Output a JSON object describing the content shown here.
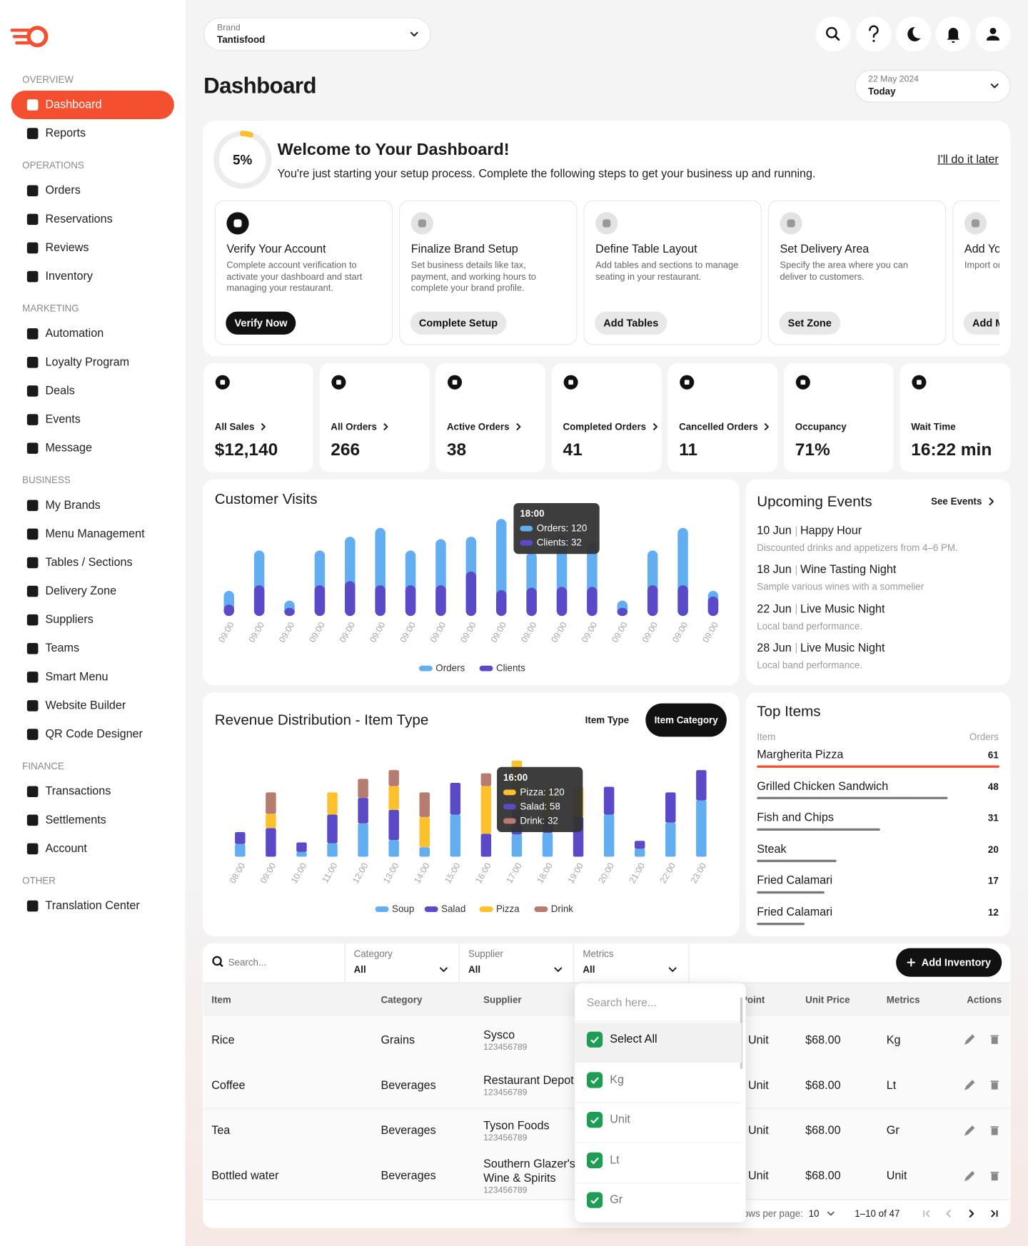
{
  "theme": {
    "accent": "#f4502f"
  },
  "sidebar": {
    "sections": [
      {
        "title": "OVERVIEW",
        "items": [
          {
            "label": "Dashboard",
            "active": true
          },
          {
            "label": "Reports"
          }
        ]
      },
      {
        "title": "OPERATIONS",
        "items": [
          {
            "label": "Orders"
          },
          {
            "label": "Reservations"
          },
          {
            "label": "Reviews"
          },
          {
            "label": "Inventory"
          }
        ]
      },
      {
        "title": "MARKETING",
        "items": [
          {
            "label": "Automation"
          },
          {
            "label": "Loyalty Program"
          },
          {
            "label": "Deals"
          },
          {
            "label": "Events"
          },
          {
            "label": "Message"
          }
        ]
      },
      {
        "title": "BUSINESS",
        "items": [
          {
            "label": "My Brands"
          },
          {
            "label": "Menu Management"
          },
          {
            "label": "Tables / Sections"
          },
          {
            "label": "Delivery Zone"
          },
          {
            "label": "Suppliers"
          },
          {
            "label": "Teams"
          },
          {
            "label": "Smart Menu"
          },
          {
            "label": "Website Builder"
          },
          {
            "label": "QR Code Designer"
          }
        ]
      },
      {
        "title": "FINANCE",
        "items": [
          {
            "label": "Transactions"
          },
          {
            "label": "Settlements"
          },
          {
            "label": "Account"
          }
        ]
      },
      {
        "title": "OTHER",
        "items": [
          {
            "label": "Translation Center"
          }
        ]
      }
    ]
  },
  "header": {
    "brand_label": "Brand",
    "brand": "Tantisfood",
    "title": "Dashboard",
    "date": "22 May 2024",
    "date_sub": "Today"
  },
  "welcome": {
    "progress": 5,
    "progress_label": "5%",
    "progress_color": "#fbc02d",
    "title": "Welcome to Your Dashboard!",
    "text": "You're just starting your setup process. Complete the following steps to get your business up and running.",
    "later": "I'll do it later",
    "steps": [
      {
        "title": "Verify Your Account",
        "text": "Complete account verification to activate your dashboard and start managing your restaurant.",
        "button": "Verify Now",
        "primary": true
      },
      {
        "title": "Finalize Brand Setup",
        "text": "Set business details like tax, payment, and working hours to complete your brand profile.",
        "button": "Complete Setup"
      },
      {
        "title": "Define Table Layout",
        "text": "Add tables and sections to manage seating in your restaurant.",
        "button": "Add Tables"
      },
      {
        "title": "Set Delivery Area",
        "text": "Specify the area where you can deliver to customers.",
        "button": "Set Zone"
      },
      {
        "title": "Add Your Menu",
        "text": "Import or add your menu items.",
        "button": "Add Menu"
      }
    ]
  },
  "stats": [
    {
      "label": "All Sales",
      "value": "$12,140",
      "link": true
    },
    {
      "label": "All Orders",
      "value": "266",
      "link": true
    },
    {
      "label": "Active Orders",
      "value": "38",
      "link": true
    },
    {
      "label": "Completed Orders",
      "value": "41",
      "link": true
    },
    {
      "label": "Cancelled Orders",
      "value": "11",
      "link": true
    },
    {
      "label": "Occupancy",
      "value": "71%"
    },
    {
      "label": "Wait Time",
      "value": "16:22 min"
    }
  ],
  "chart_data": [
    {
      "type": "bar",
      "title": "Customer Visits",
      "stacked": false,
      "categories": [
        "09:00",
        "09:00",
        "09:00",
        "09:00",
        "09:00",
        "09:00",
        "09:00",
        "09:00",
        "09:00",
        "09:00",
        "09:00",
        "09:00",
        "09:00",
        "09:00",
        "09:00",
        "09:00",
        "09:00"
      ],
      "series": [
        {
          "name": "Orders",
          "color": "#62aef0",
          "values": [
            31,
            81,
            19,
            81,
            98,
            109,
            81,
            95,
            98,
            120,
            79,
            100,
            91,
            19,
            81,
            109,
            31
          ]
        },
        {
          "name": "Clients",
          "color": "#5b4ac7",
          "values": [
            14,
            38,
            10,
            38,
            43,
            38,
            38,
            38,
            55,
            32,
            35,
            36,
            36,
            10,
            38,
            38,
            24
          ]
        }
      ],
      "ylim": [
        0,
        120
      ],
      "tooltip": {
        "title": "18:00",
        "lines": [
          {
            "text": "Orders: 120",
            "color": "#62aef0"
          },
          {
            "text": "Clients: 32",
            "color": "#5b4ac7"
          }
        ]
      }
    },
    {
      "type": "bar",
      "title": "Revenue Distribution - Item Type",
      "stacked": true,
      "toggles": [
        "Item Type",
        "Item Category"
      ],
      "toggle_active": 1,
      "categories": [
        "08:00",
        "09:00",
        "10:00",
        "11:00",
        "12:00",
        "13:00",
        "14:00",
        "15:00",
        "16:00",
        "17:00",
        "18:00",
        "19:00",
        "20:00",
        "21:00",
        "22:00",
        "23:00"
      ],
      "series": [
        {
          "name": "Soup",
          "color": "#62aef0",
          "values": [
            32,
            0,
            12,
            34,
            84,
            42,
            24,
            106,
            0,
            56,
            60,
            0,
            106,
            20,
            86,
            142
          ]
        },
        {
          "name": "Salad",
          "color": "#5b4ac7",
          "values": [
            30,
            72,
            24,
            72,
            64,
            76,
            0,
            80,
            58,
            60,
            40,
            100,
            70,
            20,
            76,
            76
          ]
        },
        {
          "name": "Pizza",
          "color": "#fcc12d",
          "values": [
            0,
            36,
            0,
            56,
            0,
            60,
            76,
            0,
            120,
            126,
            76,
            76,
            0,
            0,
            0,
            0
          ]
        },
        {
          "name": "Drink",
          "color": "#b77c70",
          "values": [
            0,
            54,
            0,
            0,
            48,
            40,
            62,
            0,
            32,
            0,
            0,
            0,
            0,
            0,
            0,
            0
          ]
        }
      ],
      "ylim": [
        0,
        250
      ],
      "tooltip": {
        "title": "16:00",
        "lines": [
          {
            "text": "Pizza: 120",
            "color": "#fcc12d"
          },
          {
            "text": "Salad: 58",
            "color": "#5b4ac7"
          },
          {
            "text": "Drink: 32",
            "color": "#b77c70"
          }
        ]
      }
    }
  ],
  "events": {
    "title": "Upcoming Events",
    "link": "See Events",
    "items": [
      {
        "date": "10 Jun",
        "name": "Happy Hour",
        "text": "Discounted drinks and appetizers from 4–6 PM."
      },
      {
        "date": "18 Jun",
        "name": "Wine Tasting Night",
        "text": "Sample various wines with a sommelier"
      },
      {
        "date": "22 Jun",
        "name": "Live Music Night",
        "text": "Local band performance."
      },
      {
        "date": "28 Jun",
        "name": "Live Music Night",
        "text": "Local band performance."
      }
    ]
  },
  "top_items": {
    "title": "Top Items",
    "columns": [
      "Item",
      "Orders"
    ],
    "xlim": [
      0,
      61
    ],
    "bar_color": "#7a7a7a",
    "items": [
      {
        "name": "Margherita Pizza",
        "orders": 61
      },
      {
        "name": "Grilled Chicken Sandwich",
        "orders": 48
      },
      {
        "name": "Fish and Chips",
        "orders": 31
      },
      {
        "name": "Steak",
        "orders": 20
      },
      {
        "name": "Fried Calamari",
        "orders": 17
      },
      {
        "name": "Fried Calamari",
        "orders": 12
      }
    ]
  },
  "inventory": {
    "search": "Search...",
    "filters": [
      {
        "label": "Category",
        "value": "All"
      },
      {
        "label": "Supplier",
        "value": "All"
      },
      {
        "label": "Metrics",
        "value": "All"
      }
    ],
    "button": "Add Inventory",
    "columns": [
      "Item",
      "Category",
      "Supplier",
      "Reorder Point",
      "Unit Price",
      "Metrics",
      "Actions"
    ],
    "rows": [
      {
        "item": "Rice",
        "category": "Grains",
        "supplier": "Sysco",
        "supplier_id": "123456789",
        "unit": "Unit",
        "price": "$68.00",
        "metrics": "Kg"
      },
      {
        "item": "Coffee",
        "category": "Beverages",
        "supplier": "Restaurant Depot",
        "supplier_id": "123456789",
        "unit": "Unit",
        "price": "$68.00",
        "metrics": "Lt"
      },
      {
        "item": "Tea",
        "category": "Beverages",
        "supplier": "Tyson Foods",
        "supplier_id": "123456789",
        "unit": "Unit",
        "price": "$68.00",
        "metrics": "Gr"
      },
      {
        "item": "Bottled water",
        "category": "Beverages",
        "supplier": "Southern Glazer's Wine & Spirits",
        "supplier_id": "123456789",
        "unit": "Unit",
        "price": "$68.00",
        "metrics": "Unit"
      }
    ],
    "pagination": {
      "rows_label": "Rows per page:",
      "rows": "10",
      "range": "1–10 of 47"
    },
    "dropdown": {
      "search": "Search here...",
      "options": [
        {
          "label": "Select All",
          "checked": true
        },
        {
          "label": "Kg",
          "checked": true
        },
        {
          "label": "Unit",
          "checked": true
        },
        {
          "label": "Lt",
          "checked": true
        },
        {
          "label": "Gr",
          "checked": true
        }
      ]
    }
  }
}
